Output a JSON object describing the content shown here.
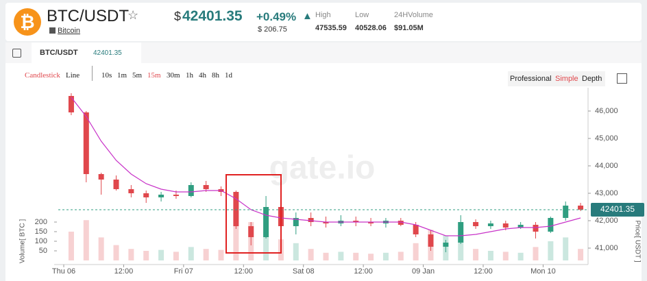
{
  "header": {
    "base_icon": "₿",
    "pair": "BTC/USDT",
    "star": "☆",
    "coin_name": "Bitcoin",
    "currency_sign": "$",
    "price": "42401.35",
    "change_percent": "+0.49%",
    "change_arrow": "▲",
    "change_amount": "$ 206.75",
    "high_label": "High",
    "high": "47535.59",
    "low_label": "Low",
    "low": "40528.06",
    "volume_label": "24HVolume",
    "volume": "$91.05M"
  },
  "tab": {
    "pair": "BTC/USDT",
    "price": "42401.35"
  },
  "toolbar": {
    "chart_types": [
      "Candlestick",
      "Line"
    ],
    "intervals": [
      "10s",
      "1m",
      "5m",
      "15m",
      "30m",
      "1h",
      "4h",
      "8h",
      "1d"
    ],
    "views": [
      "Professional",
      "Simple",
      "Depth"
    ]
  },
  "chart_data": {
    "type": "candlestick",
    "watermark": "gate.io",
    "ylabel": "Price[ USDT ]",
    "volume_axis_label": "Volume[ BTC ]",
    "color_up": "#2f9e80",
    "color_down": "#e0474c",
    "x": [
      1.5,
      4.5,
      7.5,
      10.5,
      13.5,
      16.5,
      19.5,
      22.5,
      25.5,
      28.5,
      31.5,
      34.5,
      37.5,
      40.5,
      43.5,
      46.5,
      49.5,
      52.5,
      55.5,
      58.5,
      61.5,
      64.5,
      67.5,
      70.5,
      73.5,
      76.5,
      79.5,
      82.5,
      85.5,
      88.5,
      91.5,
      94.5,
      97.5,
      100.5,
      103.5
    ],
    "open": [
      46550,
      45950,
      43700,
      43500,
      43150,
      43000,
      42850,
      42950,
      42900,
      43300,
      43150,
      43050,
      41800,
      41400,
      42500,
      41800,
      42100,
      41950,
      41900,
      42000,
      41950,
      41900,
      42000,
      41850,
      41500,
      41050,
      41200,
      41950,
      41800,
      41900,
      41750,
      41850,
      41600,
      42100,
      42550
    ],
    "high": [
      46650,
      46000,
      43750,
      43650,
      43300,
      43100,
      43050,
      43100,
      43400,
      43450,
      43250,
      43100,
      41950,
      42900,
      42700,
      42300,
      42300,
      42150,
      42200,
      42150,
      42100,
      42100,
      42100,
      41950,
      41650,
      41300,
      42200,
      42050,
      42000,
      42000,
      41950,
      41950,
      42150,
      42700,
      42650
    ],
    "low": [
      45850,
      43400,
      42950,
      43100,
      42850,
      42650,
      42700,
      42800,
      42850,
      43050,
      42900,
      41700,
      41100,
      41350,
      41600,
      41500,
      41800,
      41750,
      41800,
      41800,
      41800,
      41750,
      41800,
      41400,
      40900,
      40850,
      41150,
      41700,
      41700,
      41650,
      41700,
      41350,
      41550,
      42000,
      42350
    ],
    "close": [
      45950,
      43700,
      43500,
      43150,
      43000,
      42850,
      42950,
      42900,
      43300,
      43150,
      43050,
      41800,
      41400,
      42500,
      41800,
      42100,
      41950,
      41900,
      42000,
      41950,
      41900,
      42000,
      41850,
      41500,
      41050,
      41200,
      41950,
      41800,
      41900,
      41750,
      41850,
      41600,
      42100,
      42550,
      42401.35
    ],
    "volume": [
      150,
      210,
      120,
      80,
      60,
      50,
      55,
      45,
      70,
      60,
      55,
      180,
      200,
      150,
      110,
      90,
      60,
      40,
      45,
      40,
      35,
      40,
      45,
      90,
      160,
      130,
      140,
      60,
      50,
      45,
      40,
      70,
      100,
      120,
      60
    ],
    "moving_average": {
      "color": "#c832c8",
      "values": [
        46500,
        45800,
        44900,
        44200,
        43700,
        43350,
        43150,
        43050,
        43050,
        43100,
        43100,
        42800,
        42400,
        42200,
        42100,
        42050,
        42000,
        41950,
        41950,
        41950,
        41950,
        41950,
        41950,
        41850,
        41650,
        41450,
        41450,
        41500,
        41600,
        41700,
        41750,
        41750,
        41800,
        41950,
        42100
      ]
    },
    "last_price": 42401.35,
    "xlim": [
      -1.1,
      105
    ],
    "xticks": [
      {
        "value": 0,
        "label": "Thu 06"
      },
      {
        "value": 12,
        "label": "12:00"
      },
      {
        "value": 24,
        "label": "Fri 07"
      },
      {
        "value": 36,
        "label": "12:00"
      },
      {
        "value": 48,
        "label": "Sat 08"
      },
      {
        "value": 60,
        "label": "12:00"
      },
      {
        "value": 72,
        "label": "09 Jan"
      },
      {
        "value": 84,
        "label": "12:00"
      },
      {
        "value": 96,
        "label": "Mon 10"
      }
    ],
    "ylim": [
      40400,
      46700
    ],
    "yticks": [
      {
        "value": 41000,
        "label": "41,000"
      },
      {
        "value": 42000,
        "label": "42,000"
      },
      {
        "value": 43000,
        "label": "43,000"
      },
      {
        "value": 44000,
        "label": "44,000"
      },
      {
        "value": 45000,
        "label": "45,000"
      },
      {
        "value": 46000,
        "label": "46,000"
      }
    ],
    "volume_lim": [
      0,
      220
    ],
    "volume_ticks": [
      50,
      100,
      150,
      200
    ]
  }
}
